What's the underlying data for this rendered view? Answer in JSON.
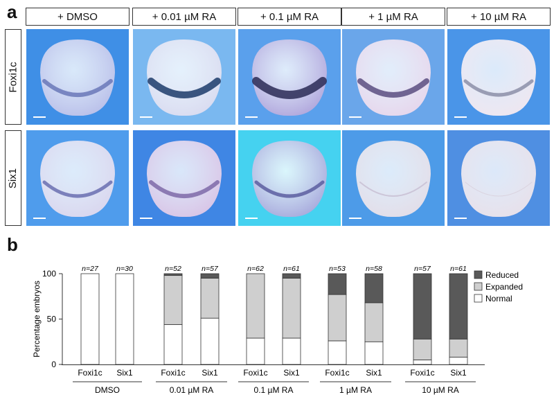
{
  "panels": {
    "a": "a",
    "b": "b"
  },
  "conditions": [
    "+ DMSO",
    "+ 0.01 µM RA",
    "+ 0.1 µM RA",
    "+ 1 µM RA",
    "+ 10 µM RA"
  ],
  "rows": [
    "Foxi1c",
    "Six1"
  ],
  "chart_data": {
    "type": "bar",
    "stacked": true,
    "ylabel": "Percentage embryos",
    "ylim": [
      0,
      100
    ],
    "yticks": [
      0,
      50,
      100
    ],
    "groups": [
      "DMSO",
      "0.01 µM RA",
      "0.1 µM RA",
      "1 µM RA",
      "10 µM RA"
    ],
    "bars": [
      {
        "group": "DMSO",
        "label": "Foxi1c",
        "n": "n=27",
        "normal": 100,
        "expanded": 0,
        "reduced": 0
      },
      {
        "group": "DMSO",
        "label": "Six1",
        "n": "n=30",
        "normal": 100,
        "expanded": 0,
        "reduced": 0
      },
      {
        "group": "0.01 µM RA",
        "label": "Foxi1c",
        "n": "n=52",
        "normal": 44,
        "expanded": 54,
        "reduced": 2
      },
      {
        "group": "0.01 µM RA",
        "label": "Six1",
        "n": "n=57",
        "normal": 51,
        "expanded": 44,
        "reduced": 5
      },
      {
        "group": "0.1 µM RA",
        "label": "Foxi1c",
        "n": "n=62",
        "normal": 29,
        "expanded": 71,
        "reduced": 0
      },
      {
        "group": "0.1 µM RA",
        "label": "Six1",
        "n": "n=61",
        "normal": 29,
        "expanded": 66,
        "reduced": 5
      },
      {
        "group": "1 µM RA",
        "label": "Foxi1c",
        "n": "n=53",
        "normal": 26,
        "expanded": 51,
        "reduced": 23
      },
      {
        "group": "1 µM RA",
        "label": "Six1",
        "n": "n=58",
        "normal": 25,
        "expanded": 43,
        "reduced": 32
      },
      {
        "group": "10 µM RA",
        "label": "Foxi1c",
        "n": "n=57",
        "normal": 5,
        "expanded": 23,
        "reduced": 72
      },
      {
        "group": "10 µM RA",
        "label": "Six1",
        "n": "n=61",
        "normal": 8,
        "expanded": 20,
        "reduced": 72
      }
    ],
    "legend": [
      {
        "key": "reduced",
        "label": "Reduced",
        "color": "#595959"
      },
      {
        "key": "expanded",
        "label": "Expanded",
        "color": "#cfcfcf"
      },
      {
        "key": "normal",
        "label": "Normal",
        "color": "#ffffff"
      }
    ],
    "legend_position": "top-right",
    "grid": false
  }
}
